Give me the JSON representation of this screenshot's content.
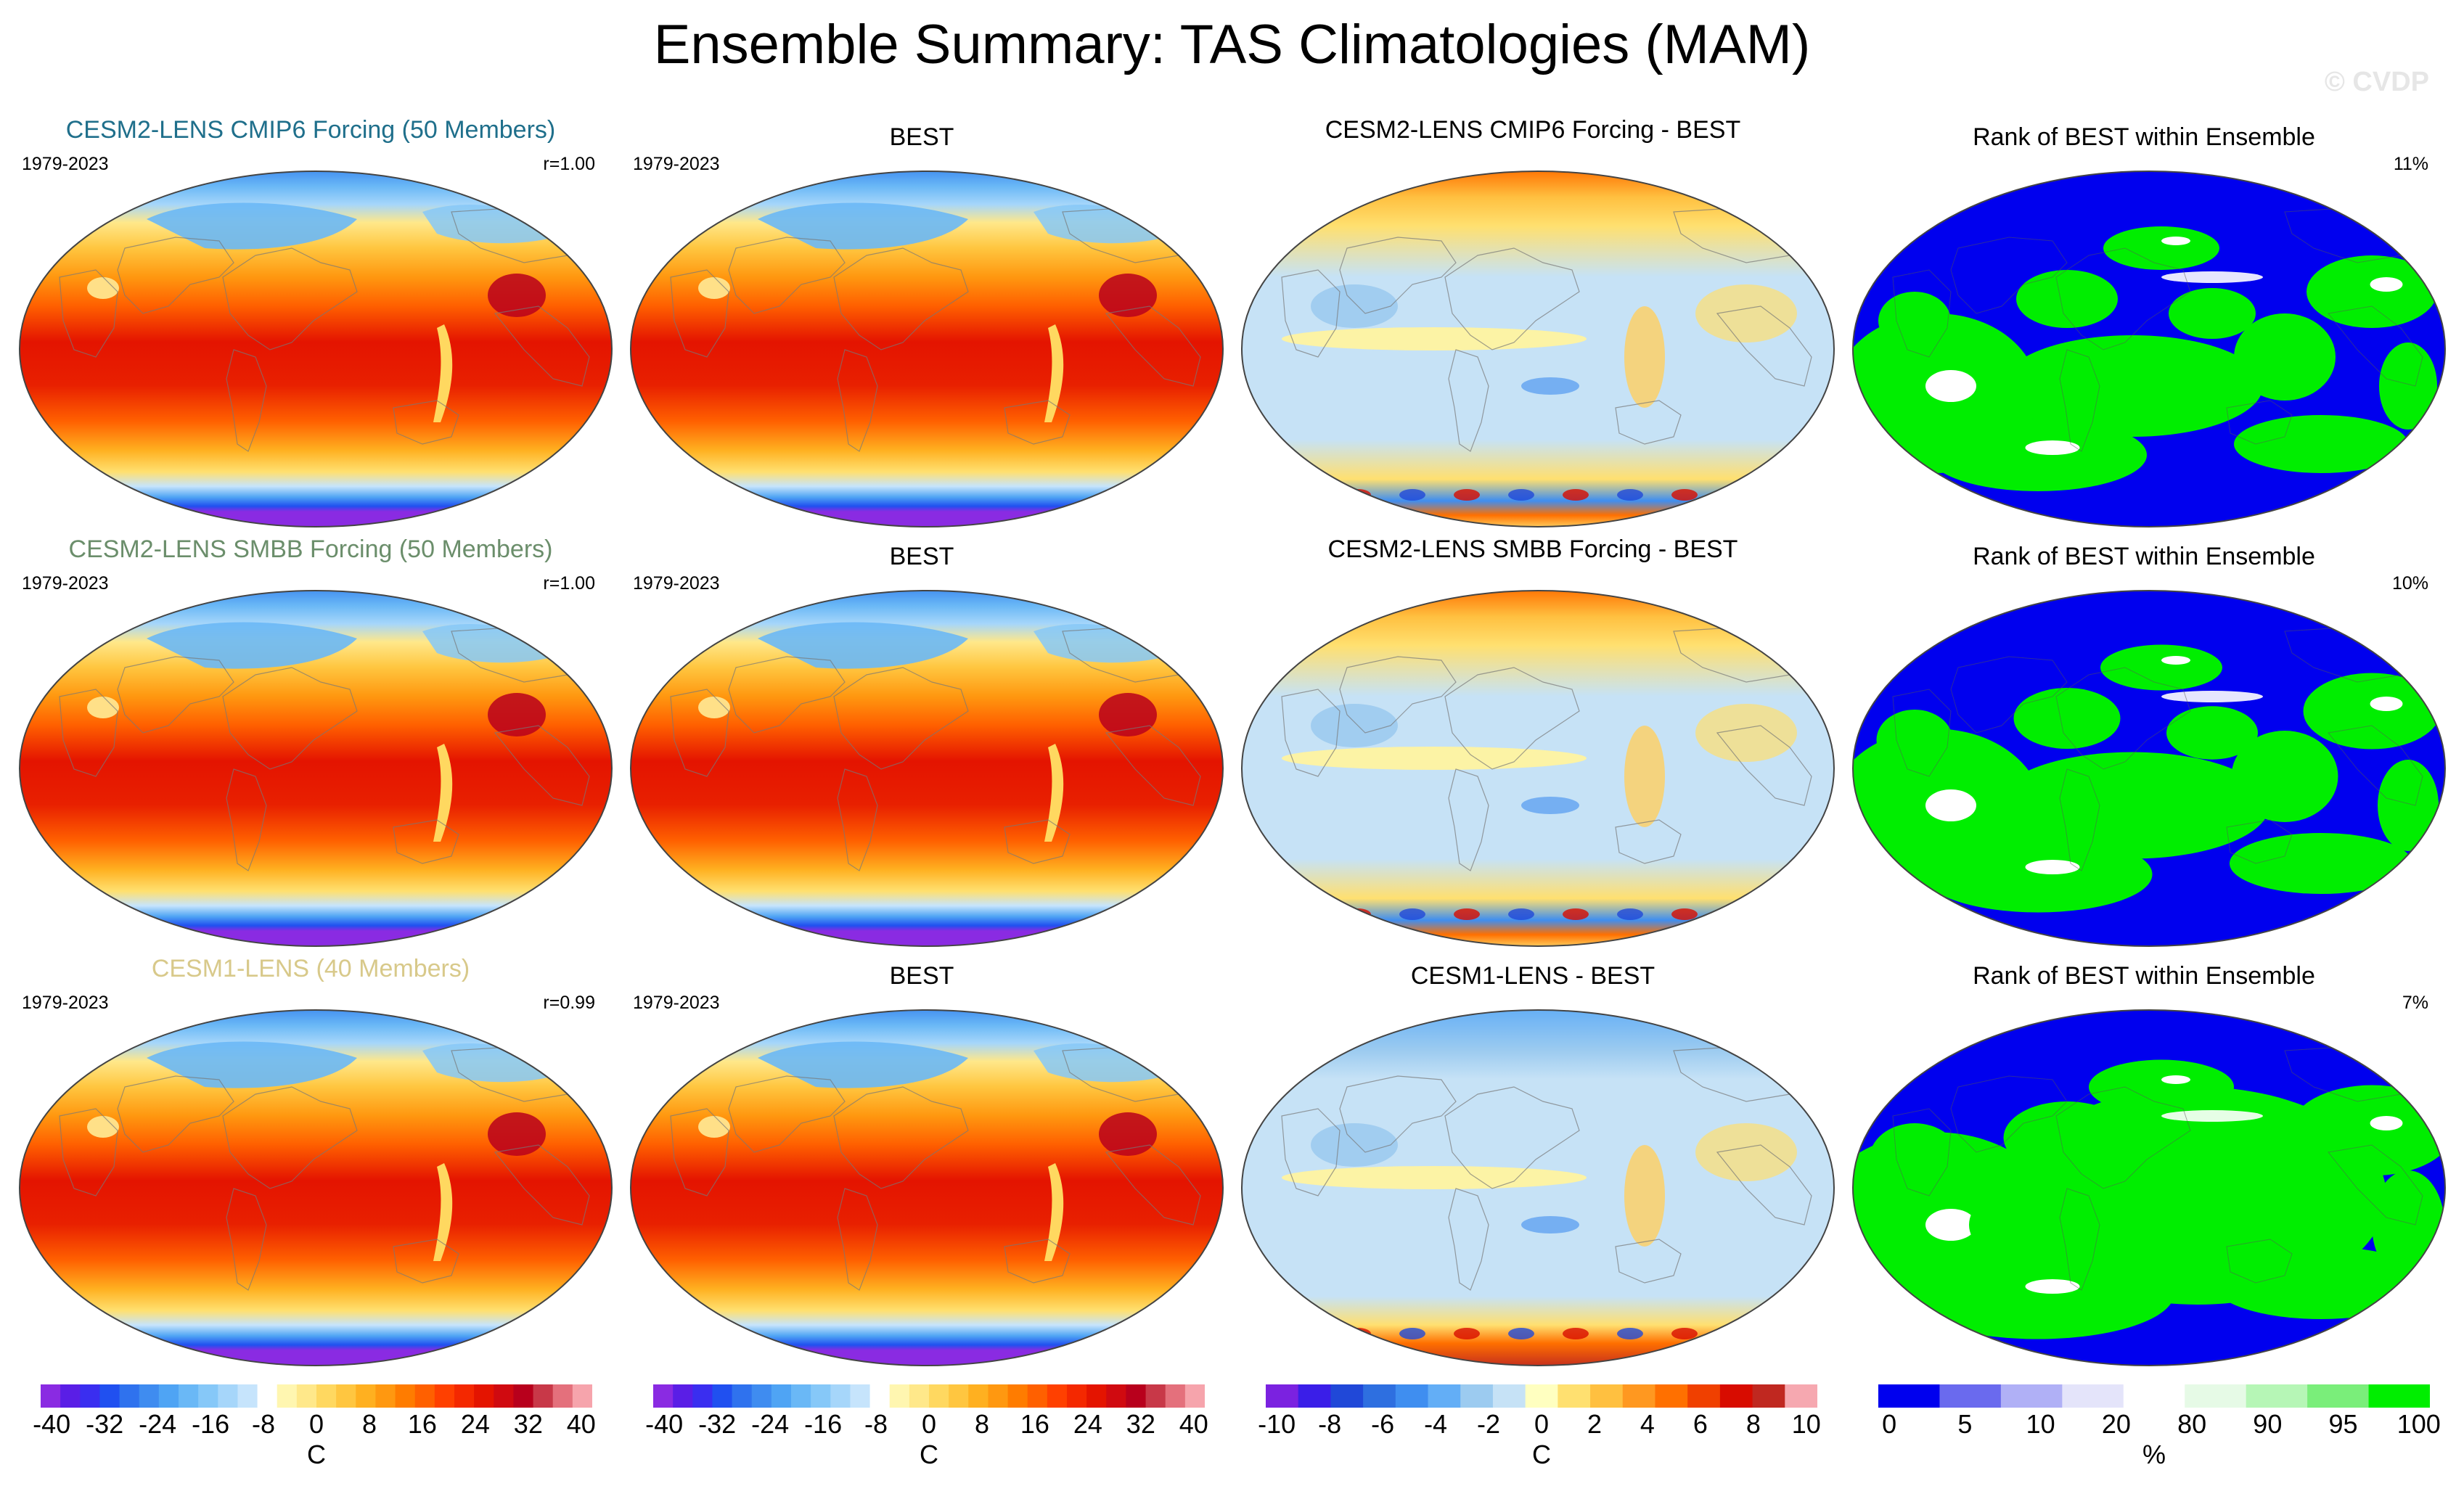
{
  "page": {
    "title": "Ensemble Summary: TAS Climatologies (MAM)",
    "watermark": "© CVDP"
  },
  "rows": [
    {
      "ensemble": {
        "title": "CESM2-LENS CMIP6 Forcing (50 Members)",
        "title_color": "#1f6f8b",
        "years": "1979-2023",
        "corr": "r=1.00"
      },
      "obs": {
        "title": "BEST",
        "years": "1979-2023"
      },
      "diff": {
        "title": "CESM2-LENS CMIP6 Forcing - BEST"
      },
      "rank": {
        "title": "Rank of BEST within Ensemble",
        "pct": "11%"
      }
    },
    {
      "ensemble": {
        "title": "CESM2-LENS SMBB Forcing (50 Members)",
        "title_color": "#6b8e6b",
        "years": "1979-2023",
        "corr": "r=1.00"
      },
      "obs": {
        "title": "BEST",
        "years": "1979-2023"
      },
      "diff": {
        "title": "CESM2-LENS SMBB Forcing - BEST"
      },
      "rank": {
        "title": "Rank of BEST within Ensemble",
        "pct": "10%"
      }
    },
    {
      "ensemble": {
        "title": "CESM1-LENS (40 Members)",
        "title_color": "#d8c98a",
        "years": "1979-2023",
        "corr": "r=0.99"
      },
      "obs": {
        "title": "BEST",
        "years": "1979-2023"
      },
      "diff": {
        "title": "CESM1-LENS - BEST"
      },
      "rank": {
        "title": "Rank of BEST within Ensemble",
        "pct": "7%"
      }
    }
  ],
  "chart_data": [
    {
      "type": "heatmap",
      "name": "climatology",
      "variable": "TAS",
      "season": "MAM",
      "unit_label": "C",
      "range": [
        -40,
        40
      ],
      "tick_labels": [
        "-40",
        "-32",
        "-24",
        "-16",
        "-8",
        "0",
        "8",
        "16",
        "24",
        "32",
        "40"
      ],
      "colors": [
        "#8a2be2",
        "#5a1ee6",
        "#3a2ef0",
        "#2050f0",
        "#2f72ee",
        "#3f8cf0",
        "#4fa4f4",
        "#6ab8f6",
        "#86c8f8",
        "#a6d6fa",
        "#c6e4fc",
        "#ffffff",
        "#fff6b0",
        "#ffe88a",
        "#ffd860",
        "#ffc640",
        "#ffb020",
        "#ff9810",
        "#ff7c00",
        "#ff6000",
        "#ff4000",
        "#f42800",
        "#e41400",
        "#d00a10",
        "#b8001c",
        "#c83848",
        "#e4707c",
        "#f6a4ac"
      ]
    },
    {
      "type": "heatmap",
      "name": "difference",
      "variable": "TAS",
      "unit_label": "C",
      "range": [
        -10,
        10
      ],
      "tick_labels": [
        "-10",
        "-8",
        "-6",
        "-4",
        "-2",
        "0",
        "2",
        "4",
        "6",
        "8",
        "10"
      ],
      "colors": [
        "#7b22e0",
        "#3a1ee8",
        "#2048d8",
        "#2e6fe0",
        "#3f8ef0",
        "#63aef6",
        "#9ccbf0",
        "#c6e2f6",
        "#ffffc0",
        "#ffe070",
        "#ffc040",
        "#ff9820",
        "#ff7000",
        "#f04000",
        "#d80c00",
        "#c02820",
        "#f6a8b0"
      ]
    },
    {
      "type": "heatmap",
      "name": "rank",
      "unit_label": "%",
      "tick_labels": [
        "0",
        "5",
        "10",
        "20",
        "80",
        "90",
        "95",
        "100"
      ],
      "colors": [
        "#0000ee",
        "#6a6aee",
        "#b0b0f6",
        "#e4e4fa",
        "#ffffff",
        "#e6fae6",
        "#b6f6b6",
        "#7aee7a",
        "#00ee00"
      ]
    }
  ]
}
